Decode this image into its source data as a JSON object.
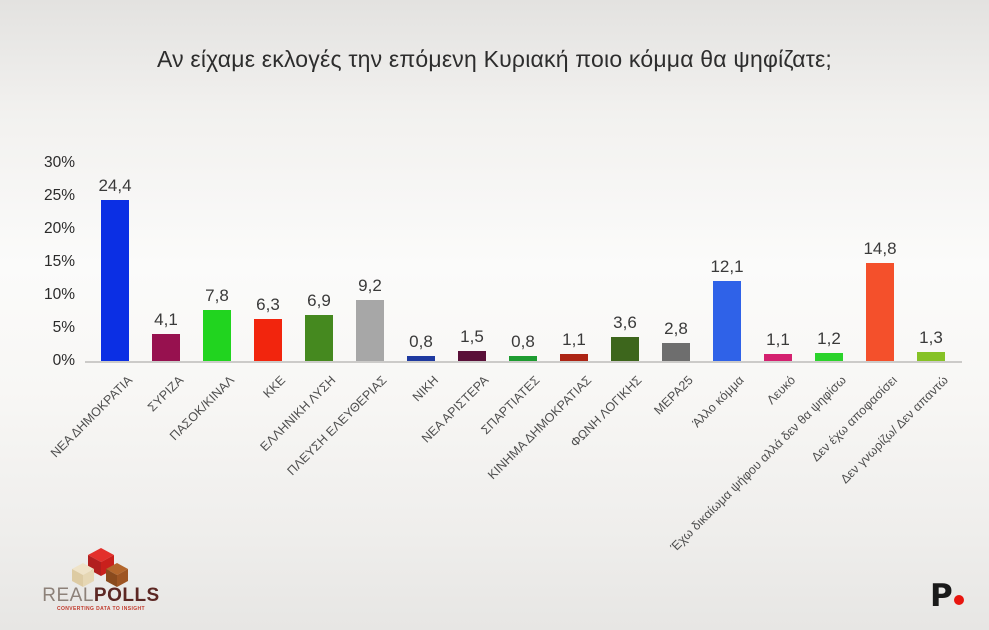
{
  "chart_data": {
    "type": "bar",
    "title": "Αν είχαμε εκλογές την επόμενη Κυριακή ποιο κόμμα θα ψηφίζατε;",
    "categories": [
      "ΝΕΑ ΔΗΜΟΚΡΑΤΙΑ",
      "ΣΥΡΙΖΑ",
      "ΠΑΣΟΚ/ΚΙΝΑΛ",
      "ΚΚΕ",
      "ΕΛΛΗΝΙΚΗ ΛΥΣΗ",
      "ΠΛΕΥΣΗ ΕΛΕΥΘΕΡΙΑΣ",
      "ΝΙΚΗ",
      "ΝΕΑ ΑΡΙΣΤΕΡΑ",
      "ΣΠΑΡΤΙΑΤΕΣ",
      "ΚΙΝΗΜΑ ΔΗΜΟΚΡΑΤΙΑΣ",
      "ΦΩΝΗ ΛΟΓΙΚΗΣ",
      "ΜΕΡΑ25",
      "Άλλο κόμμα",
      "Λευκό",
      "Έχω δικαίωμα ψήφου αλλά δεν θα ψηφίσω",
      "Δεν έχω αποφασίσει",
      "Δεν γνωρίζω/ Δεν απαντώ"
    ],
    "values": [
      24.4,
      4.1,
      7.8,
      6.3,
      6.9,
      9.2,
      0.8,
      1.5,
      0.8,
      1.1,
      3.6,
      2.8,
      12.1,
      1.1,
      1.2,
      14.8,
      1.3
    ],
    "value_labels": [
      "24,4",
      "4,1",
      "7,8",
      "6,3",
      "6,9",
      "9,2",
      "0,8",
      "1,5",
      "0,8",
      "1,1",
      "3,6",
      "2,8",
      "12,1",
      "1,1",
      "1,2",
      "14,8",
      "1,3"
    ],
    "bar_colors": [
      "#0b2fe4",
      "#97114f",
      "#21d41f",
      "#f2250d",
      "#45891f",
      "#a7a7a7",
      "#1f3aa0",
      "#5a1038",
      "#1e9c31",
      "#ad2414",
      "#3d661c",
      "#6e6e6e",
      "#2f62e8",
      "#d4216f",
      "#2bd32b",
      "#f4502b",
      "#86c226"
    ],
    "xlabel": "",
    "ylabel": "",
    "ylim": [
      0,
      30
    ],
    "ytick_values": [
      0,
      5,
      10,
      15,
      20,
      25,
      30
    ],
    "ytick_labels": [
      "0%",
      "5%",
      "10%",
      "15%",
      "20%",
      "25%",
      "30%"
    ],
    "grid": false,
    "legend_position": "none"
  },
  "branding": {
    "realpolls": {
      "name_part1": "REAL",
      "name_part2": "POLLS",
      "tagline": "CONVERTING DATA TO INSIGHT"
    },
    "network": {
      "letter": "P"
    }
  }
}
